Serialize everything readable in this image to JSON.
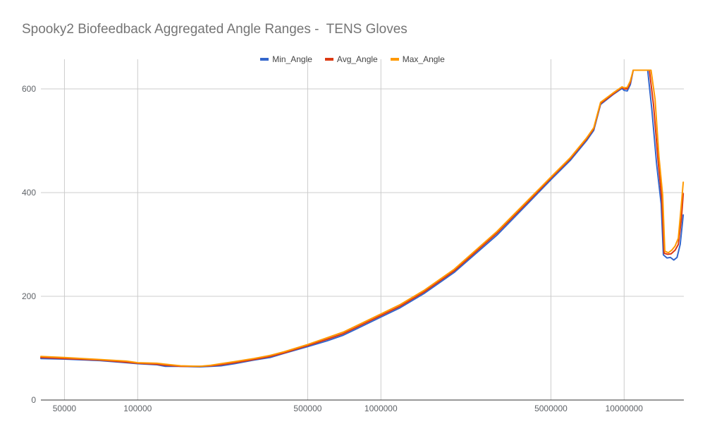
{
  "chart_data": {
    "type": "line",
    "title": "Spooky2 Biofeedback Aggregated Angle Ranges -  TENS Gloves",
    "xlabel": "",
    "ylabel": "",
    "xscale": "log",
    "xlim": [
      40000,
      17600000
    ],
    "ylim": [
      0,
      600
    ],
    "x_ticks": [
      50000,
      100000,
      500000,
      1000000,
      5000000,
      10000000
    ],
    "x_tick_labels": [
      "50000",
      "100000",
      "500000",
      "1000000",
      "5000000",
      "10000000"
    ],
    "y_ticks": [
      0,
      200,
      400,
      600
    ],
    "y_tick_labels": [
      "0",
      "200",
      "400",
      "600"
    ],
    "grid": true,
    "legend_position": "top",
    "series": [
      {
        "name": "Min_Angle",
        "color": "#3366cc",
        "points": [
          [
            40000,
            80
          ],
          [
            50000,
            79
          ],
          [
            70000,
            76
          ],
          [
            90000,
            72
          ],
          [
            100000,
            70
          ],
          [
            120000,
            68
          ],
          [
            130000,
            65
          ],
          [
            150000,
            65
          ],
          [
            180000,
            64
          ],
          [
            200000,
            65
          ],
          [
            220000,
            66
          ],
          [
            250000,
            70
          ],
          [
            300000,
            77
          ],
          [
            350000,
            82
          ],
          [
            400000,
            90
          ],
          [
            500000,
            103
          ],
          [
            600000,
            114
          ],
          [
            700000,
            125
          ],
          [
            800000,
            138
          ],
          [
            1000000,
            160
          ],
          [
            1200000,
            178
          ],
          [
            1500000,
            205
          ],
          [
            2000000,
            246
          ],
          [
            3000000,
            318
          ],
          [
            4000000,
            378
          ],
          [
            5000000,
            425
          ],
          [
            6000000,
            462
          ],
          [
            7000000,
            500
          ],
          [
            7500000,
            520
          ],
          [
            8000000,
            570
          ],
          [
            9000000,
            589
          ],
          [
            9800000,
            601
          ],
          [
            10000000,
            597
          ],
          [
            10300000,
            596
          ],
          [
            10600000,
            608
          ],
          [
            10900000,
            636
          ],
          [
            11500000,
            636
          ],
          [
            12500000,
            636
          ],
          [
            13000000,
            560
          ],
          [
            13600000,
            455
          ],
          [
            14200000,
            378
          ],
          [
            14500000,
            280
          ],
          [
            15000000,
            274
          ],
          [
            15500000,
            275
          ],
          [
            16000000,
            270
          ],
          [
            16500000,
            275
          ],
          [
            17000000,
            300
          ],
          [
            17500000,
            357
          ]
        ]
      },
      {
        "name": "Avg_Angle",
        "color": "#dc3912",
        "points": [
          [
            40000,
            82
          ],
          [
            50000,
            80
          ],
          [
            70000,
            77
          ],
          [
            90000,
            73
          ],
          [
            100000,
            71
          ],
          [
            120000,
            69
          ],
          [
            130000,
            67
          ],
          [
            150000,
            65
          ],
          [
            180000,
            65
          ],
          [
            200000,
            66
          ],
          [
            220000,
            68
          ],
          [
            250000,
            72
          ],
          [
            300000,
            78
          ],
          [
            350000,
            84
          ],
          [
            400000,
            91
          ],
          [
            500000,
            105
          ],
          [
            600000,
            117
          ],
          [
            700000,
            128
          ],
          [
            800000,
            141
          ],
          [
            1000000,
            163
          ],
          [
            1200000,
            181
          ],
          [
            1500000,
            208
          ],
          [
            2000000,
            249
          ],
          [
            3000000,
            322
          ],
          [
            4000000,
            381
          ],
          [
            5000000,
            428
          ],
          [
            6000000,
            465
          ],
          [
            7000000,
            503
          ],
          [
            7500000,
            523
          ],
          [
            8000000,
            572
          ],
          [
            9000000,
            590
          ],
          [
            9800000,
            603
          ],
          [
            10000000,
            600
          ],
          [
            10300000,
            600
          ],
          [
            10600000,
            612
          ],
          [
            10900000,
            636
          ],
          [
            11500000,
            636
          ],
          [
            12700000,
            636
          ],
          [
            13200000,
            570
          ],
          [
            13800000,
            460
          ],
          [
            14300000,
            385
          ],
          [
            14600000,
            283
          ],
          [
            15100000,
            281
          ],
          [
            15600000,
            282
          ],
          [
            16200000,
            289
          ],
          [
            16700000,
            300
          ],
          [
            17200000,
            350
          ],
          [
            17500000,
            398
          ]
        ]
      },
      {
        "name": "Max_Angle",
        "color": "#ff9900",
        "points": [
          [
            40000,
            84
          ],
          [
            50000,
            82
          ],
          [
            70000,
            78
          ],
          [
            90000,
            75
          ],
          [
            100000,
            72
          ],
          [
            120000,
            71
          ],
          [
            130000,
            69
          ],
          [
            150000,
            66
          ],
          [
            180000,
            65
          ],
          [
            200000,
            67
          ],
          [
            220000,
            70
          ],
          [
            250000,
            74
          ],
          [
            300000,
            80
          ],
          [
            350000,
            86
          ],
          [
            400000,
            93
          ],
          [
            500000,
            107
          ],
          [
            600000,
            120
          ],
          [
            700000,
            131
          ],
          [
            800000,
            144
          ],
          [
            1000000,
            166
          ],
          [
            1200000,
            184
          ],
          [
            1500000,
            211
          ],
          [
            2000000,
            252
          ],
          [
            3000000,
            325
          ],
          [
            4000000,
            384
          ],
          [
            5000000,
            430
          ],
          [
            6000000,
            467
          ],
          [
            7000000,
            505
          ],
          [
            7500000,
            525
          ],
          [
            8000000,
            574
          ],
          [
            9000000,
            592
          ],
          [
            9800000,
            604
          ],
          [
            10000000,
            602
          ],
          [
            10300000,
            603
          ],
          [
            10600000,
            615
          ],
          [
            10900000,
            636
          ],
          [
            11500000,
            636
          ],
          [
            12900000,
            636
          ],
          [
            13400000,
            580
          ],
          [
            13900000,
            470
          ],
          [
            14400000,
            395
          ],
          [
            14700000,
            287
          ],
          [
            15200000,
            284
          ],
          [
            15700000,
            289
          ],
          [
            16200000,
            297
          ],
          [
            16700000,
            312
          ],
          [
            17100000,
            365
          ],
          [
            17500000,
            420
          ]
        ]
      }
    ]
  }
}
